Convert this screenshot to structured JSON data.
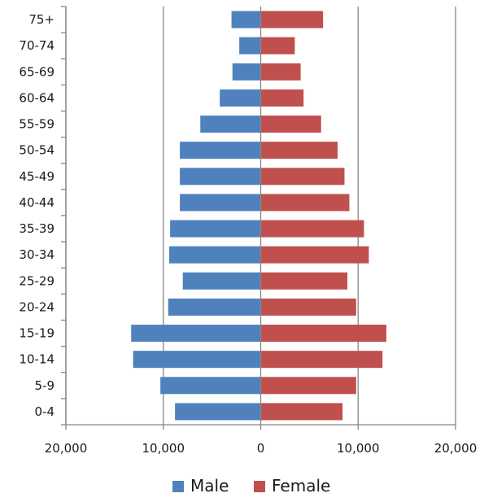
{
  "chart_data": {
    "type": "bar",
    "orientation": "horizontal",
    "layout": "population-pyramid",
    "categories": [
      "0-4",
      "5-9",
      "10-14",
      "15-19",
      "20-24",
      "25-29",
      "30-34",
      "35-39",
      "40-44",
      "45-49",
      "50-54",
      "55-59",
      "60-64",
      "65-69",
      "70-74",
      "75+"
    ],
    "series": [
      {
        "name": "Male",
        "color": "#4f81bd",
        "side": "left",
        "values": [
          8800,
          10300,
          13100,
          13300,
          9500,
          8000,
          9400,
          9300,
          8300,
          8300,
          8300,
          6200,
          4200,
          2900,
          2200,
          3000
        ]
      },
      {
        "name": "Female",
        "color": "#c0504d",
        "side": "right",
        "values": [
          8400,
          9800,
          12500,
          12900,
          9800,
          8900,
          11100,
          10600,
          9100,
          8600,
          7900,
          6200,
          4400,
          4100,
          3500,
          6400
        ]
      }
    ],
    "xlim": [
      -20000,
      20000
    ],
    "x_ticks": [
      -20000,
      -10000,
      0,
      10000,
      20000
    ],
    "x_tick_labels": [
      "20,000",
      "10,000",
      "0",
      "10,000",
      "20,000"
    ],
    "grid": "vertical",
    "legend": "bottom",
    "title": "",
    "xlabel": "",
    "ylabel": ""
  }
}
